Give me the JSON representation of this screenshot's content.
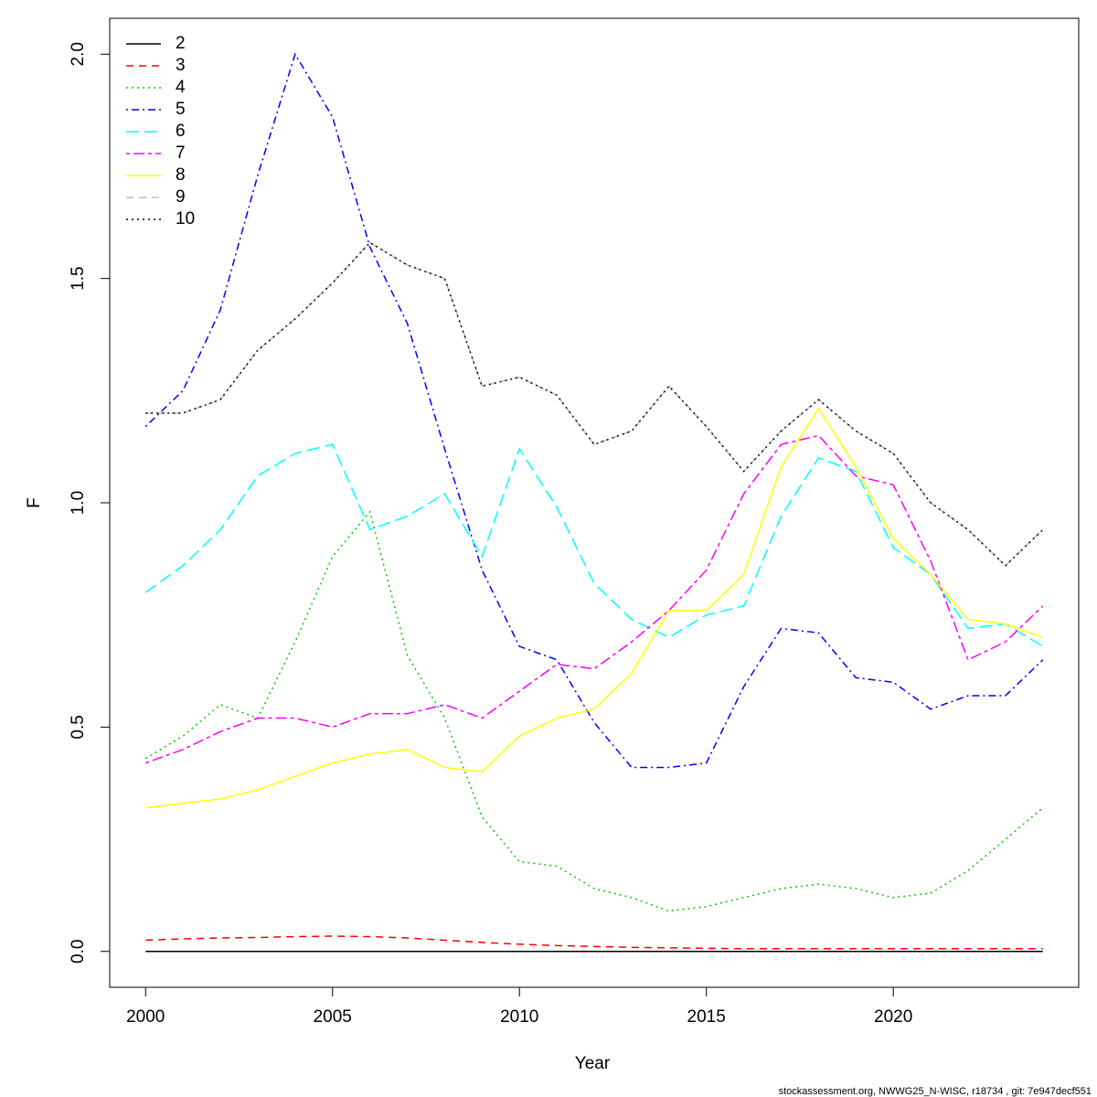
{
  "chart_data": {
    "type": "line",
    "x_label": "Year",
    "y_label": "F",
    "footer": "stockassessment.org, NWWG25_N-WISC, r18734 , git: 7e947decf551",
    "x": [
      2000,
      2001,
      2002,
      2003,
      2004,
      2005,
      2006,
      2007,
      2008,
      2009,
      2010,
      2011,
      2012,
      2013,
      2014,
      2015,
      2016,
      2017,
      2018,
      2019,
      2020,
      2021,
      2022,
      2023,
      2024
    ],
    "xlim": [
      1999.04,
      2024.96
    ],
    "xticks": [
      2000,
      2005,
      2010,
      2015,
      2020
    ],
    "ylim": [
      -0.08,
      2.08
    ],
    "yticks": [
      {
        "value": 0,
        "label": "0.0"
      },
      0.5,
      {
        "value": 1,
        "label": "1.0"
      },
      1.5,
      {
        "value": 2,
        "label": "2.0"
      }
    ],
    "legend": "top-left",
    "series": [
      {
        "name": "2",
        "color": "#000000",
        "linestyle": "solid",
        "values": [
          0,
          0,
          0,
          0,
          0,
          0,
          0,
          0,
          0,
          0,
          0,
          0,
          0,
          0,
          0,
          0,
          0,
          0,
          0,
          0,
          0,
          0,
          0,
          0,
          0
        ]
      },
      {
        "name": "3",
        "color": "#ff0000",
        "linestyle": "dashed",
        "values": [
          0.025,
          0.028,
          0.03,
          0.031,
          0.033,
          0.034,
          0.033,
          0.03,
          0.025,
          0.02,
          0.016,
          0.013,
          0.011,
          0.009,
          0.008,
          0.007,
          0.006,
          0.006,
          0.006,
          0.006,
          0.006,
          0.006,
          0.006,
          0.006,
          0.006
        ]
      },
      {
        "name": "4",
        "color": "#00cd00",
        "linestyle": "dotted",
        "values": [
          0.43,
          0.48,
          0.55,
          0.52,
          0.69,
          0.88,
          0.98,
          0.66,
          0.52,
          0.3,
          0.2,
          0.19,
          0.14,
          0.12,
          0.09,
          0.1,
          0.12,
          0.14,
          0.15,
          0.14,
          0.12,
          0.13,
          0.18,
          0.25,
          0.32
        ]
      },
      {
        "name": "5",
        "color": "#0000ff",
        "linestyle": "dotdash",
        "values": [
          1.17,
          1.25,
          1.43,
          1.73,
          2.0,
          1.86,
          1.57,
          1.4,
          1.12,
          0.85,
          0.68,
          0.65,
          0.51,
          0.41,
          0.41,
          0.42,
          0.59,
          0.72,
          0.71,
          0.61,
          0.6,
          0.54,
          0.57,
          0.57,
          0.65
        ]
      },
      {
        "name": "6",
        "color": "#00ffff",
        "linestyle": "longdash",
        "values": [
          0.8,
          0.86,
          0.94,
          1.06,
          1.11,
          1.13,
          0.94,
          0.97,
          1.02,
          0.88,
          1.12,
          0.99,
          0.82,
          0.74,
          0.7,
          0.75,
          0.77,
          0.97,
          1.1,
          1.07,
          0.9,
          0.84,
          0.72,
          0.73,
          0.68
        ]
      },
      {
        "name": "7",
        "color": "#ff00ff",
        "linestyle": "twodash",
        "values": [
          0.42,
          0.45,
          0.49,
          0.52,
          0.52,
          0.5,
          0.53,
          0.53,
          0.55,
          0.52,
          0.58,
          0.64,
          0.63,
          0.69,
          0.76,
          0.85,
          1.02,
          1.13,
          1.15,
          1.06,
          1.04,
          0.87,
          0.65,
          0.69,
          0.77
        ]
      },
      {
        "name": "8",
        "color": "#ffff00",
        "linestyle": "solid",
        "values": [
          0.32,
          0.33,
          0.34,
          0.36,
          0.39,
          0.42,
          0.44,
          0.45,
          0.41,
          0.4,
          0.48,
          0.52,
          0.54,
          0.62,
          0.76,
          0.76,
          0.84,
          1.08,
          1.21,
          1.08,
          0.92,
          0.84,
          0.74,
          0.73,
          0.7
        ]
      },
      {
        "name": "9",
        "color": "#bebebe",
        "linestyle": "dashed",
        "values": [
          1.2,
          1.2,
          1.23,
          1.34,
          1.41,
          1.49,
          1.58,
          1.53,
          1.5,
          1.26,
          1.28,
          1.24,
          1.13,
          1.16,
          1.26,
          1.17,
          1.07,
          1.16,
          1.23,
          1.16,
          1.11,
          1.0,
          0.94,
          0.86,
          0.94
        ]
      },
      {
        "name": "10",
        "color": "#000000",
        "linestyle": "dotted",
        "values": [
          1.2,
          1.2,
          1.23,
          1.34,
          1.41,
          1.49,
          1.58,
          1.53,
          1.5,
          1.26,
          1.28,
          1.24,
          1.13,
          1.16,
          1.26,
          1.17,
          1.07,
          1.16,
          1.23,
          1.16,
          1.11,
          1.0,
          0.94,
          0.86,
          0.94
        ]
      }
    ]
  }
}
